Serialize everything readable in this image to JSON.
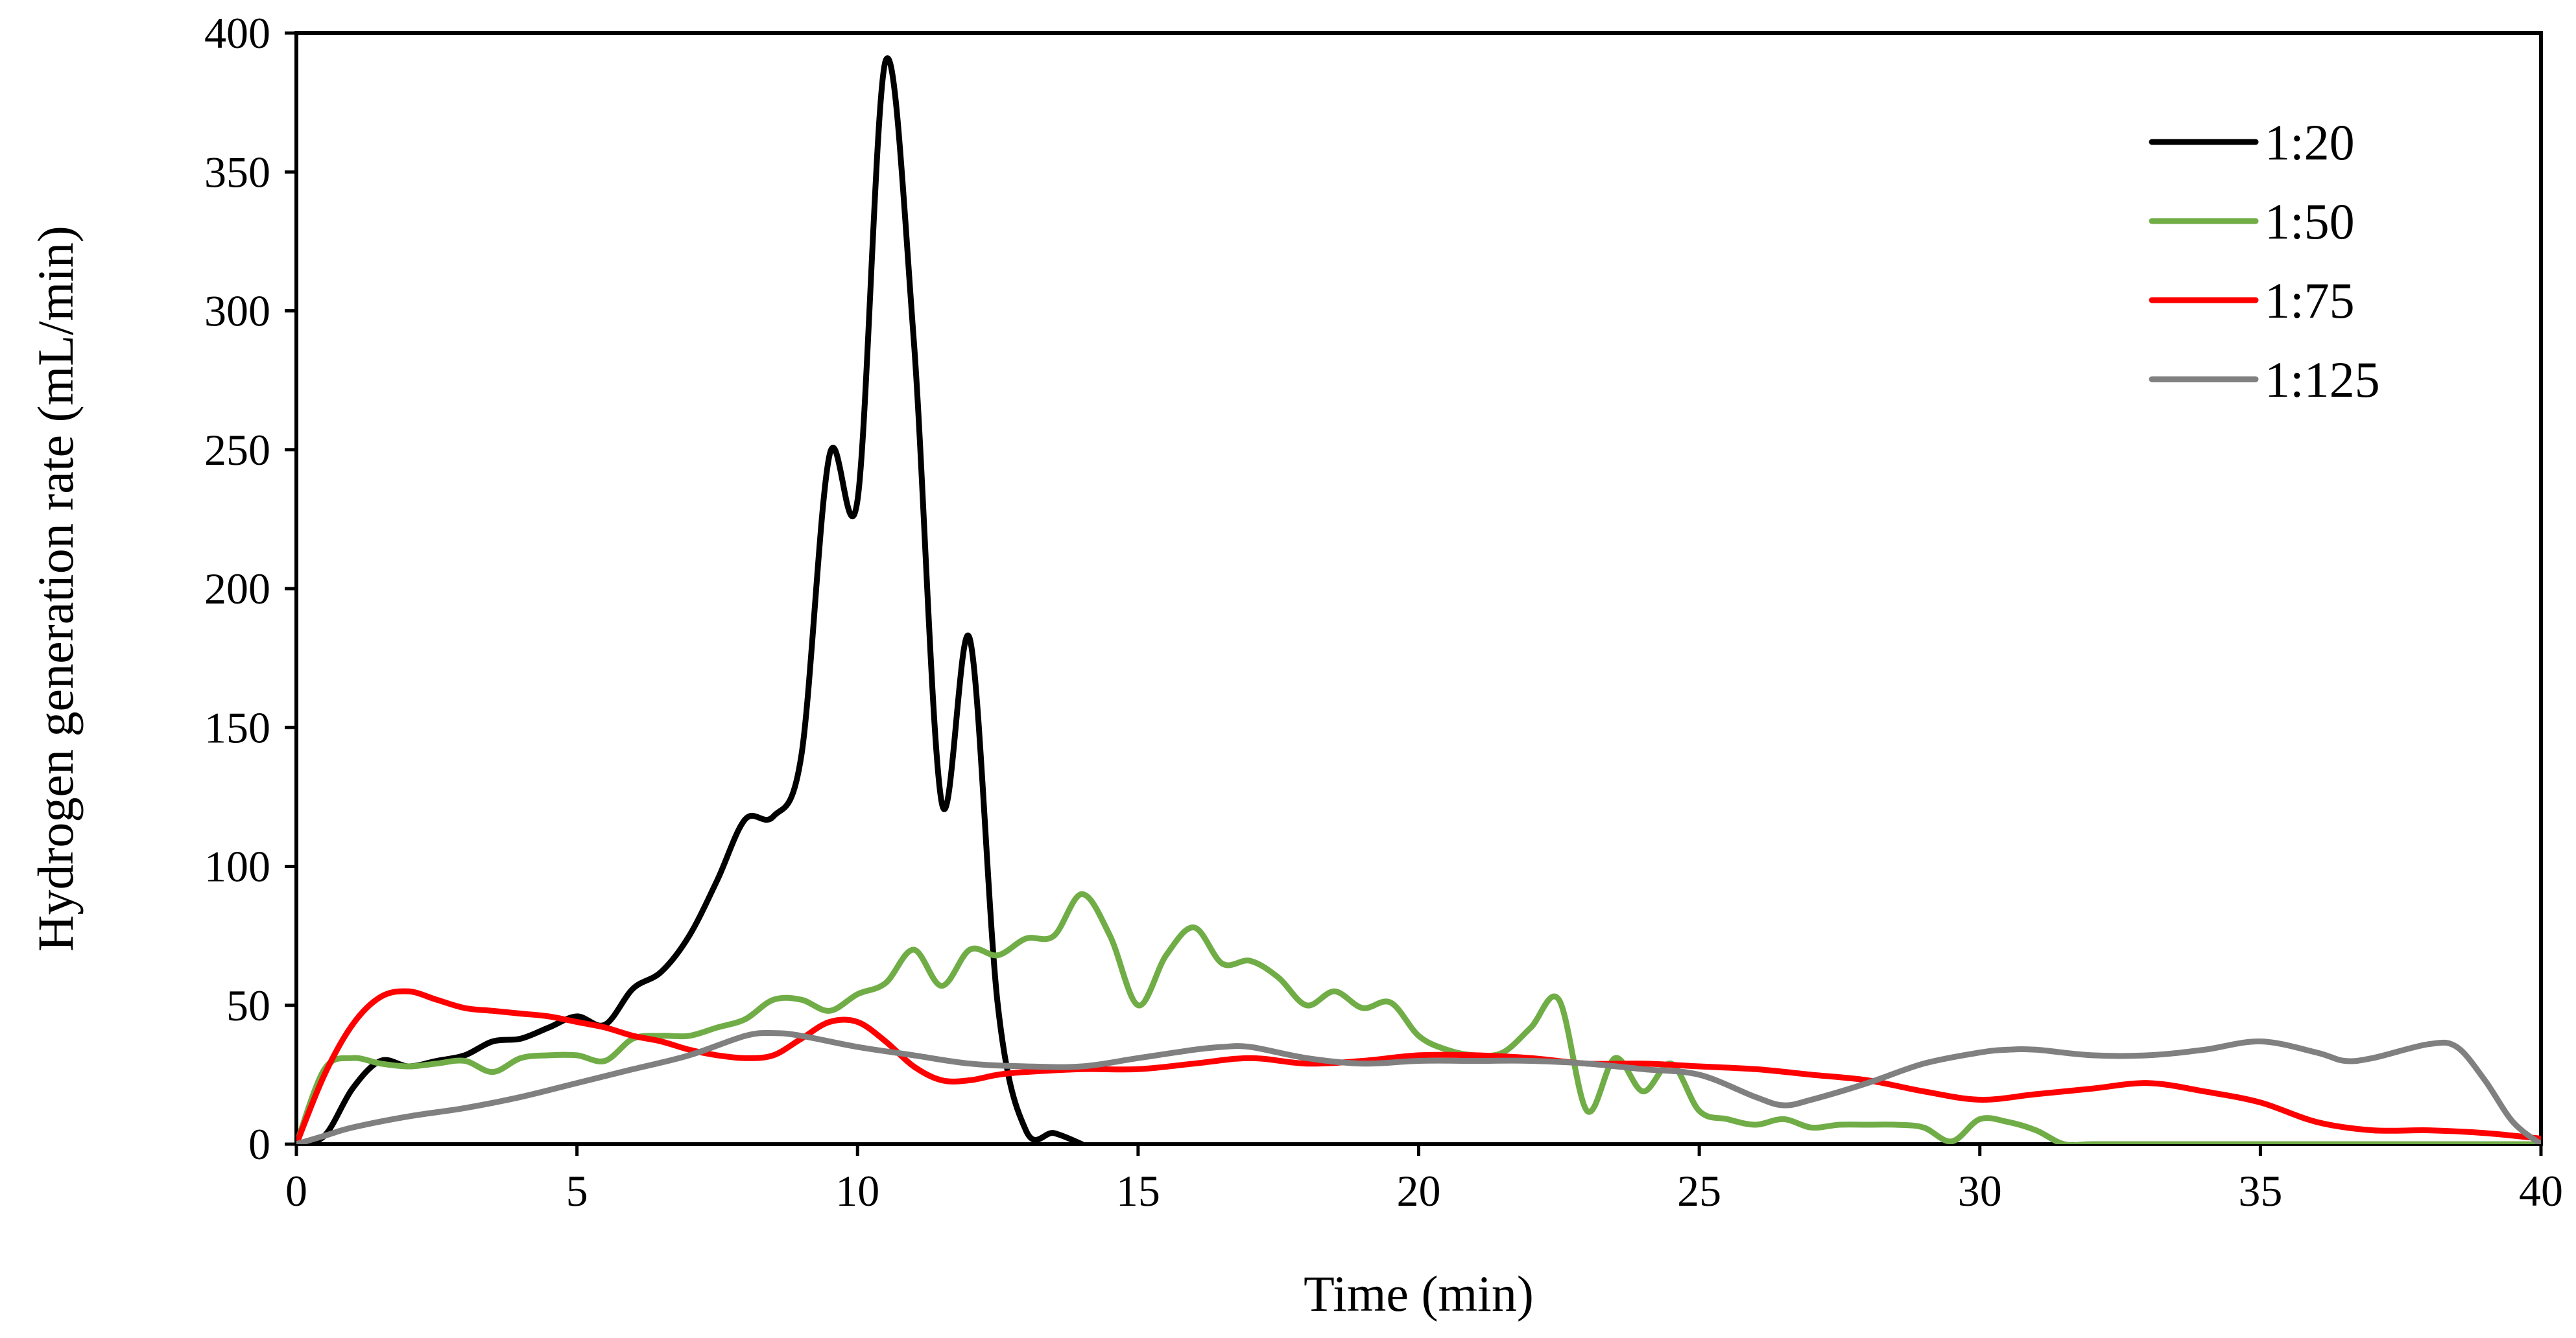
{
  "chart_data": {
    "type": "line",
    "xlabel": "Time (min)",
    "ylabel": "Hydrogen generation rate (mL/min)",
    "xlim": [
      0,
      40
    ],
    "ylim": [
      0,
      400
    ],
    "x_ticks": [
      0,
      5,
      10,
      15,
      20,
      25,
      30,
      35,
      40
    ],
    "y_ticks": [
      0,
      50,
      100,
      150,
      200,
      250,
      300,
      350,
      400
    ],
    "grid": false,
    "legend_position": "top-right",
    "series": [
      {
        "name": "1:20",
        "color": "#000000",
        "x": [
          0,
          0.5,
          1,
          1.5,
          2,
          2.5,
          3,
          3.5,
          4,
          4.5,
          5,
          5.5,
          6,
          6.5,
          7,
          7.5,
          8,
          8.5,
          9,
          9.5,
          10,
          10.5,
          11,
          11.5,
          12,
          12.5,
          13,
          13.5,
          14
        ],
        "y": [
          0,
          3,
          20,
          30,
          28,
          30,
          32,
          37,
          38,
          42,
          46,
          43,
          56,
          62,
          75,
          95,
          117,
          118,
          140,
          248,
          232,
          390,
          290,
          123,
          182,
          50,
          5,
          4,
          0
        ]
      },
      {
        "name": "1:50",
        "color": "#70ad47",
        "x": [
          0,
          0.5,
          1,
          1.5,
          2,
          2.5,
          3,
          3.5,
          4,
          4.5,
          5,
          5.5,
          6,
          6.5,
          7,
          7.5,
          8,
          8.5,
          9,
          9.5,
          10,
          10.5,
          11,
          11.5,
          12,
          12.5,
          13,
          13.5,
          14,
          14.5,
          15,
          15.5,
          16,
          16.5,
          17,
          17.5,
          18,
          18.5,
          19,
          19.5,
          20,
          20.5,
          21,
          21.5,
          22,
          22.5,
          23,
          23.5,
          24,
          24.5,
          25,
          25.5,
          26,
          26.5,
          27,
          27.5,
          28,
          28.5,
          29,
          29.5,
          30,
          30.5,
          31,
          31.5,
          32,
          33,
          34,
          35,
          36,
          37,
          38,
          39,
          40
        ],
        "y": [
          0,
          27,
          31,
          29,
          28,
          29,
          30,
          26,
          31,
          32,
          32,
          30,
          38,
          39,
          39,
          42,
          45,
          52,
          52,
          48,
          54,
          58,
          70,
          57,
          70,
          68,
          74,
          75,
          90,
          75,
          50,
          68,
          78,
          65,
          66,
          60,
          50,
          55,
          49,
          51,
          39,
          34,
          32,
          33,
          42,
          52,
          12,
          31,
          19,
          29,
          12,
          9,
          7,
          9,
          6,
          7,
          7,
          7,
          6,
          1,
          9,
          8,
          5,
          0,
          0,
          0,
          0,
          0,
          0,
          0,
          0,
          0,
          0
        ]
      },
      {
        "name": "1:75",
        "color": "#ff0000",
        "x": [
          0,
          0.5,
          1,
          1.5,
          2,
          2.5,
          3,
          3.5,
          4,
          4.5,
          5,
          5.5,
          6,
          6.5,
          7,
          7.5,
          8,
          8.5,
          9,
          9.5,
          10,
          10.5,
          11,
          11.5,
          12,
          12.5,
          13,
          14,
          15,
          16,
          17,
          18,
          19,
          20,
          21,
          22,
          23,
          24,
          25,
          26,
          27,
          28,
          29,
          30,
          31,
          32,
          33,
          34,
          35,
          36,
          37,
          38,
          39,
          40
        ],
        "y": [
          0,
          25,
          43,
          53,
          55,
          52,
          49,
          48,
          47,
          46,
          44,
          42,
          39,
          37,
          34,
          32,
          31,
          32,
          38,
          44,
          44,
          37,
          28,
          23,
          23,
          25,
          26,
          27,
          27,
          29,
          31,
          29,
          30,
          32,
          32,
          31,
          29,
          29,
          28,
          27,
          25,
          23,
          19,
          16,
          18,
          20,
          22,
          19,
          15,
          8,
          5,
          5,
          4,
          2
        ]
      },
      {
        "name": "1:125",
        "color": "#808080",
        "x": [
          0,
          0.5,
          1,
          2,
          3,
          4,
          5,
          6,
          7,
          8,
          8.5,
          9,
          10,
          11,
          12,
          13,
          14,
          15,
          16,
          16.5,
          17,
          18,
          19,
          20,
          21,
          22,
          23,
          24,
          25,
          26,
          26.5,
          27,
          28,
          29,
          30,
          30.5,
          31,
          32,
          33,
          34,
          35,
          36,
          36.5,
          37,
          38,
          38.5,
          39,
          39.5,
          40
        ],
        "y": [
          0,
          3,
          6,
          10,
          13,
          17,
          22,
          27,
          32,
          39,
          40,
          39,
          35,
          32,
          29,
          28,
          28,
          31,
          34,
          35,
          35,
          31,
          29,
          30,
          30,
          30,
          29,
          27,
          25,
          17,
          14,
          16,
          22,
          29,
          33,
          34,
          34,
          32,
          32,
          34,
          37,
          33,
          30,
          31,
          36,
          35,
          23,
          8,
          0
        ]
      }
    ]
  }
}
